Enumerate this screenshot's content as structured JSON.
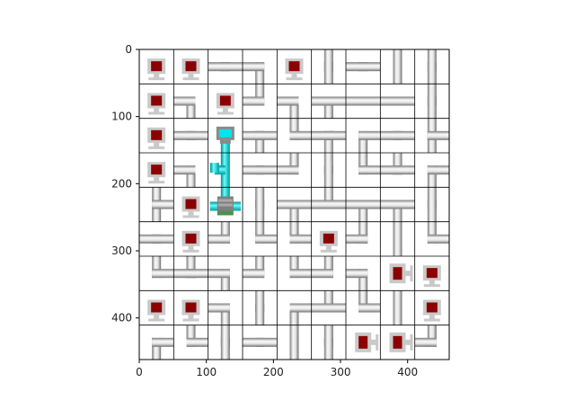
{
  "puzzle": {
    "type": "pipe-network-grid",
    "size": 9,
    "note": "",
    "cells": [
      [
        [
          "monitor",
          null
        ],
        [
          "monitor",
          null
        ],
        [
          "h",
          null
        ],
        [
          "sw",
          null
        ],
        [
          "monitor",
          null
        ],
        [
          "v",
          null
        ],
        [
          "h",
          null
        ],
        [
          "v",
          null
        ],
        [
          "v",
          null
        ]
      ],
      [
        [
          "monitor",
          null
        ],
        [
          "sw",
          null
        ],
        [
          "monitor",
          null
        ],
        [
          "nw",
          null
        ],
        [
          "sw",
          null
        ],
        [
          "tee-s",
          null
        ],
        [
          "h",
          null
        ],
        [
          "h",
          null
        ],
        [
          "v",
          null
        ]
      ],
      [
        [
          "monitor",
          null
        ],
        [
          "h",
          null
        ],
        [
          "server",
          null
        ],
        [
          "tee-s",
          null
        ],
        [
          "ne",
          null
        ],
        [
          "tee-s",
          null
        ],
        [
          "se",
          null
        ],
        [
          "h",
          null
        ],
        [
          "tee-e",
          null
        ]
      ],
      [
        [
          "monitor",
          null
        ],
        [
          "sw",
          null
        ],
        [
          "cross-active",
          null
        ],
        [
          "h",
          null
        ],
        [
          "nw",
          null
        ],
        [
          "v",
          null
        ],
        [
          "ne",
          null
        ],
        [
          "tee-n",
          null
        ],
        [
          "se",
          null
        ]
      ],
      [
        [
          "tee-e",
          null
        ],
        [
          "monitor",
          null
        ],
        [
          "source",
          null
        ],
        [
          "v",
          null
        ],
        [
          "tee-s",
          null
        ],
        [
          "tee-n",
          null
        ],
        [
          "tee-s",
          null
        ],
        [
          "tee-s",
          null
        ],
        [
          "v",
          null
        ]
      ],
      [
        [
          "h",
          null
        ],
        [
          "monitor",
          null
        ],
        [
          "nw",
          null
        ],
        [
          "ne",
          null
        ],
        [
          "ne",
          null
        ],
        [
          "monitor",
          null
        ],
        [
          "nw",
          null
        ],
        [
          "v",
          null
        ],
        [
          "ne",
          null
        ]
      ],
      [
        [
          "ne",
          null
        ],
        [
          "tee-n",
          null
        ],
        [
          "sw",
          null
        ],
        [
          "nw",
          null
        ],
        [
          "ne",
          null
        ],
        [
          "nw",
          null
        ],
        [
          "sw",
          null
        ],
        [
          "monitor-side",
          null
        ],
        [
          "monitor",
          null
        ]
      ],
      [
        [
          "monitor",
          null
        ],
        [
          "monitor",
          null
        ],
        [
          "sw",
          null
        ],
        [
          "v",
          null
        ],
        [
          "se",
          null
        ],
        [
          "tee-n",
          null
        ],
        [
          "ne",
          null
        ],
        [
          "v",
          null
        ],
        [
          "monitor",
          null
        ]
      ],
      [
        [
          "se",
          null
        ],
        [
          "ne",
          null
        ],
        [
          "v",
          null
        ],
        [
          "h",
          null
        ],
        [
          "v",
          null
        ],
        [
          "v",
          null
        ],
        [
          "monitor-side",
          null
        ],
        [
          "monitor-side",
          null
        ],
        [
          "nw",
          null
        ]
      ]
    ]
  },
  "axes": {
    "x_ticks": [
      "0",
      "100",
      "200",
      "300",
      "400"
    ],
    "y_ticks": [
      "0",
      "100",
      "200",
      "300",
      "400"
    ]
  },
  "colors": {
    "pipe_light": "#f4f4f4",
    "pipe_dark": "#8c8c8c",
    "active_pipe": "#00e5ee",
    "monitor_frame": "#c9c9c9",
    "monitor_screen": "#8b0000",
    "grid_line": "#000000"
  }
}
